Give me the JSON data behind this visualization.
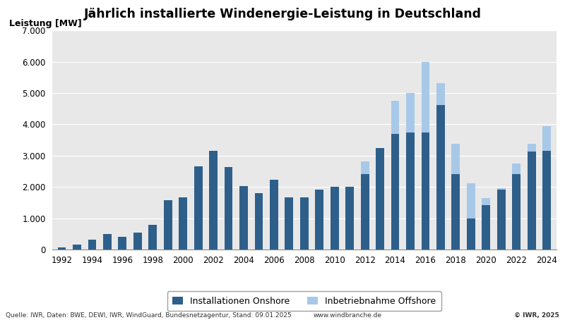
{
  "title": "Jährlich installierte Windenergie-Leistung in Deutschland",
  "ylabel": "Leistung [MW]",
  "years": [
    1992,
    1993,
    1994,
    1995,
    1996,
    1997,
    1998,
    1999,
    2000,
    2001,
    2002,
    2003,
    2004,
    2005,
    2006,
    2007,
    2008,
    2009,
    2010,
    2011,
    2012,
    2013,
    2014,
    2015,
    2016,
    2017,
    2018,
    2019,
    2020,
    2021,
    2022,
    2023,
    2024
  ],
  "onshore": [
    75,
    155,
    310,
    505,
    415,
    540,
    793,
    1568,
    1668,
    2659,
    3150,
    2645,
    2037,
    1808,
    2233,
    1667,
    1665,
    1917,
    2014,
    2007,
    2415,
    3238,
    3700,
    3731,
    3750,
    4619,
    2402,
    1000,
    1431,
    1925,
    2403,
    3139,
    3155
  ],
  "offshore": [
    0,
    0,
    0,
    0,
    0,
    0,
    0,
    0,
    0,
    0,
    0,
    0,
    0,
    0,
    0,
    0,
    0,
    0,
    0,
    0,
    410,
    0,
    1050,
    1270,
    2250,
    690,
    970,
    1111,
    219,
    27,
    356,
    230,
    790
  ],
  "onshore_color": "#2E5F8A",
  "offshore_color": "#A8C8E8",
  "plot_bg_color": "#E8E8E8",
  "fig_bg_color": "#FFFFFF",
  "grid_color": "#FFFFFF",
  "ylim": [
    0,
    7000
  ],
  "yticks": [
    0,
    1000,
    2000,
    3000,
    4000,
    5000,
    6000,
    7000
  ],
  "legend_onshore": "Installationen Onshore",
  "legend_offshore": "Inbetriebnahme Offshore",
  "source_text": "Quelle: IWR, Daten: BWE, DEWI, IWR, WindGuard, Bundesnetzagentur, Stand: 09.01.2025",
  "website_text": "www.windbranche.de",
  "copyright_text": "© IWR, 2025"
}
